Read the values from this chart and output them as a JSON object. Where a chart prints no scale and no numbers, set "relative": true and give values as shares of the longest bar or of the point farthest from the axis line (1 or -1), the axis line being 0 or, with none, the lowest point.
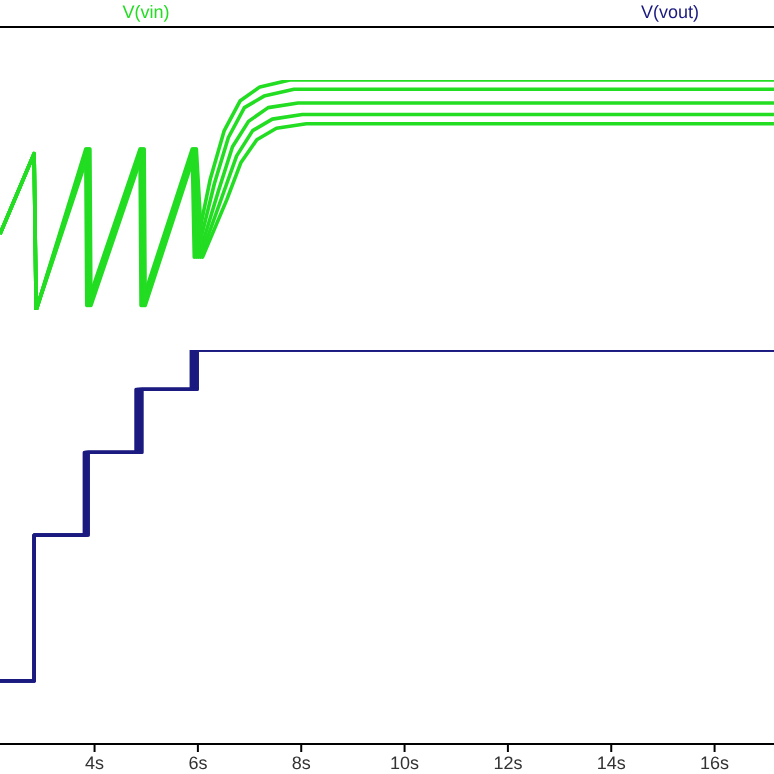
{
  "chart_data": [
    {
      "type": "line",
      "legend": "top left",
      "relative": true,
      "xlim": [
        2.17,
        17.15
      ],
      "tick_labels": false,
      "series": [
        {
          "name": "V(vin)",
          "color": "#22dd22",
          "x": [
            2.17,
            2.83,
            2.87,
            3.83,
            3.85,
            4.88,
            4.9,
            5.89,
            5.93,
            6.24,
            6.51,
            6.82,
            7.2,
            7.78,
            17.15
          ],
          "values": [
            0.33,
            0.68,
            0,
            0.7,
            0.02,
            0.7,
            0.02,
            0.7,
            0.23,
            0.57,
            0.78,
            0.91,
            0.97,
            1,
            1
          ]
        },
        {
          "color": "#22dd22",
          "x": [
            2.17,
            2.83,
            2.87,
            3.85,
            3.87,
            4.9,
            4.92,
            5.91,
            5.97,
            6.32,
            6.59,
            6.9,
            7.28,
            7.86,
            17.15
          ],
          "values": [
            0.33,
            0.68,
            0,
            0.7,
            0.02,
            0.7,
            0.02,
            0.7,
            0.23,
            0.55,
            0.75,
            0.88,
            0.93,
            0.96,
            0.96
          ]
        },
        {
          "color": "#22dd22",
          "x": [
            2.17,
            2.83,
            2.87,
            3.87,
            3.89,
            4.92,
            4.94,
            5.93,
            6.01,
            6.4,
            6.67,
            6.98,
            7.36,
            7.94,
            17.15
          ],
          "values": [
            0.33,
            0.68,
            0,
            0.7,
            0.02,
            0.7,
            0.02,
            0.7,
            0.23,
            0.52,
            0.71,
            0.82,
            0.88,
            0.9,
            0.9
          ]
        },
        {
          "color": "#22dd22",
          "x": [
            2.17,
            2.83,
            2.87,
            3.89,
            3.91,
            4.94,
            4.96,
            5.95,
            6.05,
            6.48,
            6.75,
            7.06,
            7.44,
            8.02,
            17.15
          ],
          "values": [
            0.33,
            0.68,
            0,
            0.7,
            0.02,
            0.7,
            0.02,
            0.7,
            0.23,
            0.5,
            0.67,
            0.78,
            0.83,
            0.85,
            0.85
          ]
        },
        {
          "color": "#22dd22",
          "x": [
            2.17,
            2.83,
            2.87,
            3.91,
            3.93,
            4.96,
            4.98,
            5.97,
            6.09,
            6.56,
            6.83,
            7.14,
            7.52,
            8.1,
            17.15
          ],
          "values": [
            0.33,
            0.68,
            0,
            0.7,
            0.02,
            0.7,
            0.02,
            0.7,
            0.23,
            0.48,
            0.64,
            0.74,
            0.79,
            0.81,
            0.81
          ]
        }
      ]
    },
    {
      "type": "step",
      "legend": "top right",
      "relative": true,
      "xlim": [
        2.17,
        17.15
      ],
      "xticks": [
        {
          "value": 4,
          "label": "4s"
        },
        {
          "value": 6,
          "label": "6s"
        },
        {
          "value": 8,
          "label": "8s"
        },
        {
          "value": 10,
          "label": "10s"
        },
        {
          "value": 12,
          "label": "12s"
        },
        {
          "value": 14,
          "label": "14s"
        },
        {
          "value": 16,
          "label": "16s"
        }
      ],
      "tick_labels": "x",
      "series": [
        {
          "name": "V(vout)",
          "color": "#1a1a80",
          "x": [
            2.17,
            2.83,
            3.8,
            4.8,
            5.87,
            17.15
          ],
          "values": [
            0.16,
            0.53,
            0.74,
            0.9,
            1,
            1
          ]
        },
        {
          "color": "#1a1a80",
          "x": [
            2.17,
            2.83,
            3.82,
            4.83,
            5.9,
            17.15
          ],
          "values": [
            0.16,
            0.53,
            0.74,
            0.9,
            1,
            1
          ]
        },
        {
          "color": "#1a1a80",
          "x": [
            2.17,
            2.83,
            3.84,
            4.86,
            5.93,
            17.15
          ],
          "values": [
            0.16,
            0.53,
            0.74,
            0.9,
            1,
            1
          ]
        },
        {
          "color": "#1a1a80",
          "x": [
            2.17,
            2.83,
            3.86,
            4.89,
            5.96,
            17.15
          ],
          "values": [
            0.16,
            0.53,
            0.74,
            0.9,
            1,
            1
          ]
        },
        {
          "color": "#1a1a80",
          "x": [
            2.17,
            2.83,
            3.88,
            4.92,
            5.99,
            17.15
          ],
          "values": [
            0.16,
            0.53,
            0.74,
            0.9,
            1,
            1
          ]
        }
      ]
    }
  ]
}
